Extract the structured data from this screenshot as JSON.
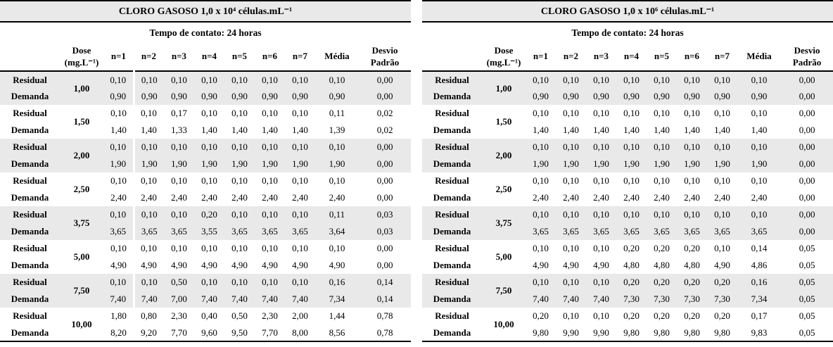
{
  "tables": [
    {
      "id": "cloro-gasoso-1e4",
      "title": "CLORO GASOSO 1,0 x 10⁴ células.mL⁻¹",
      "subtitle": "Tempo de contato: 24 horas",
      "columns": [
        "",
        "Dose (mg.L⁻¹)",
        "n=1",
        "n=2",
        "n=3",
        "n=4",
        "n=5",
        "n=6",
        "n=7",
        "Média",
        "Desvio Padrão"
      ],
      "row_labels": {
        "residual": "Residual",
        "demanda": "Demanda"
      },
      "shade_color": "#e9e9e9",
      "groups": [
        {
          "dose": "1,00",
          "shaded": true,
          "residual": {
            "values": [
              "0,10",
              "0,10",
              "0,10",
              "0,10",
              "0,10",
              "0,10",
              "0,10"
            ],
            "media": "0,10",
            "desvio": "0,00"
          },
          "demanda": {
            "values": [
              "0,90",
              "0,90",
              "0,90",
              "0,90",
              "0,90",
              "0,90",
              "0,90"
            ],
            "media": "0,90",
            "desvio": "0,00"
          }
        },
        {
          "dose": "1,50",
          "shaded": false,
          "residual": {
            "values": [
              "0,10",
              "0,10",
              "0,17",
              "0,10",
              "0,10",
              "0,10",
              "0,10"
            ],
            "media": "0,11",
            "desvio": "0,02"
          },
          "demanda": {
            "values": [
              "1,40",
              "1,40",
              "1,33",
              "1,40",
              "1,40",
              "1,40",
              "1,40"
            ],
            "media": "1,39",
            "desvio": "0,02"
          }
        },
        {
          "dose": "2,00",
          "shaded": true,
          "residual": {
            "values": [
              "0,10",
              "0,10",
              "0,10",
              "0,10",
              "0,10",
              "0,10",
              "0,10"
            ],
            "media": "0,10",
            "desvio": "0,00"
          },
          "demanda": {
            "values": [
              "1,90",
              "1,90",
              "1,90",
              "1,90",
              "1,90",
              "1,90",
              "1,90"
            ],
            "media": "1,90",
            "desvio": "0,00"
          }
        },
        {
          "dose": "2,50",
          "shaded": false,
          "residual": {
            "values": [
              "0,10",
              "0,10",
              "0,10",
              "0,10",
              "0,10",
              "0,10",
              "0,10"
            ],
            "media": "0,10",
            "desvio": "0,00"
          },
          "demanda": {
            "values": [
              "2,40",
              "2,40",
              "2,40",
              "2,40",
              "2,40",
              "2,40",
              "2,40"
            ],
            "media": "2,40",
            "desvio": "0,00"
          }
        },
        {
          "dose": "3,75",
          "shaded": true,
          "residual": {
            "values": [
              "0,10",
              "0,10",
              "0,10",
              "0,20",
              "0,10",
              "0,10",
              "0,10"
            ],
            "media": "0,11",
            "desvio": "0,03"
          },
          "demanda": {
            "values": [
              "3,65",
              "3,65",
              "3,65",
              "3,55",
              "3,65",
              "3,65",
              "3,65"
            ],
            "media": "3,64",
            "desvio": "0,03"
          }
        },
        {
          "dose": "5,00",
          "shaded": false,
          "residual": {
            "values": [
              "0,10",
              "0,10",
              "0,10",
              "0,10",
              "0,10",
              "0,10",
              "0,10"
            ],
            "media": "0,10",
            "desvio": "0,00"
          },
          "demanda": {
            "values": [
              "4,90",
              "4,90",
              "4,90",
              "4,90",
              "4,90",
              "4,90",
              "4,90"
            ],
            "media": "4,90",
            "desvio": "0,00"
          }
        },
        {
          "dose": "7,50",
          "shaded": true,
          "residual": {
            "values": [
              "0,10",
              "0,10",
              "0,50",
              "0,10",
              "0,10",
              "0,10",
              "0,10"
            ],
            "media": "0,16",
            "desvio": "0,14"
          },
          "demanda": {
            "values": [
              "7,40",
              "7,40",
              "7,00",
              "7,40",
              "7,40",
              "7,40",
              "7,40"
            ],
            "media": "7,34",
            "desvio": "0,14"
          }
        },
        {
          "dose": "10,00",
          "shaded": false,
          "residual": {
            "values": [
              "1,80",
              "0,80",
              "2,30",
              "0,40",
              "0,50",
              "2,30",
              "2,00"
            ],
            "media": "1,44",
            "desvio": "0,78"
          },
          "demanda": {
            "values": [
              "8,20",
              "9,20",
              "7,70",
              "9,60",
              "9,50",
              "7,70",
              "8,00"
            ],
            "media": "8,56",
            "desvio": "0,78"
          }
        }
      ]
    },
    {
      "id": "cloro-gasoso-1e6",
      "title": "CLORO GASOSO 1,0 x 10⁶ células.mL⁻¹",
      "subtitle": "Tempo de contato: 24 horas",
      "columns": [
        "",
        "Dose (mg.L⁻¹)",
        "n=1",
        "n=2",
        "n=3",
        "n=4",
        "n=5",
        "n=6",
        "n=7",
        "Média",
        "Desvio Padrão"
      ],
      "row_labels": {
        "residual": "Residual",
        "demanda": "Demanda"
      },
      "shade_color": "#e9e9e9",
      "groups": [
        {
          "dose": "1,00",
          "shaded": true,
          "residual": {
            "values": [
              "0,10",
              "0,10",
              "0,10",
              "0,10",
              "0,10",
              "0,10",
              "0,10"
            ],
            "media": "0,10",
            "desvio": "0,00"
          },
          "demanda": {
            "values": [
              "0,90",
              "0,90",
              "0,90",
              "0,90",
              "0,90",
              "0,90",
              "0,90"
            ],
            "media": "0,90",
            "desvio": "0,00"
          }
        },
        {
          "dose": "1,50",
          "shaded": false,
          "residual": {
            "values": [
              "0,10",
              "0,10",
              "0,10",
              "0,10",
              "0,10",
              "0,10",
              "0,10"
            ],
            "media": "0,10",
            "desvio": "0,00"
          },
          "demanda": {
            "values": [
              "1,40",
              "1,40",
              "1,40",
              "1,40",
              "1,40",
              "1,40",
              "1,40"
            ],
            "media": "1,40",
            "desvio": "0,00"
          }
        },
        {
          "dose": "2,00",
          "shaded": true,
          "residual": {
            "values": [
              "0,10",
              "0,10",
              "0,10",
              "0,10",
              "0,10",
              "0,10",
              "0,10"
            ],
            "media": "0,10",
            "desvio": "0,00"
          },
          "demanda": {
            "values": [
              "1,90",
              "1,90",
              "1,90",
              "1,90",
              "1,90",
              "1,90",
              "1,90"
            ],
            "media": "1,90",
            "desvio": "0,00"
          }
        },
        {
          "dose": "2,50",
          "shaded": false,
          "residual": {
            "values": [
              "0,10",
              "0,10",
              "0,10",
              "0,10",
              "0,10",
              "0,10",
              "0,10"
            ],
            "media": "0,10",
            "desvio": "0,00"
          },
          "demanda": {
            "values": [
              "2,40",
              "2,40",
              "2,40",
              "2,40",
              "2,40",
              "2,40",
              "2,40"
            ],
            "media": "2,40",
            "desvio": "0,00"
          }
        },
        {
          "dose": "3,75",
          "shaded": true,
          "residual": {
            "values": [
              "0,10",
              "0,10",
              "0,10",
              "0,10",
              "0,10",
              "0,10",
              "0,10"
            ],
            "media": "0,10",
            "desvio": "0,00"
          },
          "demanda": {
            "values": [
              "3,65",
              "3,65",
              "3,65",
              "3,65",
              "3,65",
              "3,65",
              "3,65"
            ],
            "media": "3,65",
            "desvio": "0,00"
          }
        },
        {
          "dose": "5,00",
          "shaded": false,
          "residual": {
            "values": [
              "0,10",
              "0,10",
              "0,10",
              "0,20",
              "0,20",
              "0,20",
              "0,10"
            ],
            "media": "0,14",
            "desvio": "0,05"
          },
          "demanda": {
            "values": [
              "4,90",
              "4,90",
              "4,90",
              "4,80",
              "4,80",
              "4,80",
              "4,90"
            ],
            "media": "4,86",
            "desvio": "0,05"
          }
        },
        {
          "dose": "7,50",
          "shaded": true,
          "residual": {
            "values": [
              "0,10",
              "0,10",
              "0,10",
              "0,20",
              "0,20",
              "0,20",
              "0,20"
            ],
            "media": "0,16",
            "desvio": "0,05"
          },
          "demanda": {
            "values": [
              "7,40",
              "7,40",
              "7,40",
              "7,30",
              "7,30",
              "7,30",
              "7,30"
            ],
            "media": "7,34",
            "desvio": "0,05"
          }
        },
        {
          "dose": "10,00",
          "shaded": false,
          "residual": {
            "values": [
              "0,20",
              "0,10",
              "0,10",
              "0,20",
              "0,20",
              "0,20",
              "0,20"
            ],
            "media": "0,17",
            "desvio": "0,05"
          },
          "demanda": {
            "values": [
              "9,80",
              "9,90",
              "9,90",
              "9,80",
              "9,80",
              "9,80",
              "9,80"
            ],
            "media": "9,83",
            "desvio": "0,05"
          }
        }
      ]
    }
  ]
}
